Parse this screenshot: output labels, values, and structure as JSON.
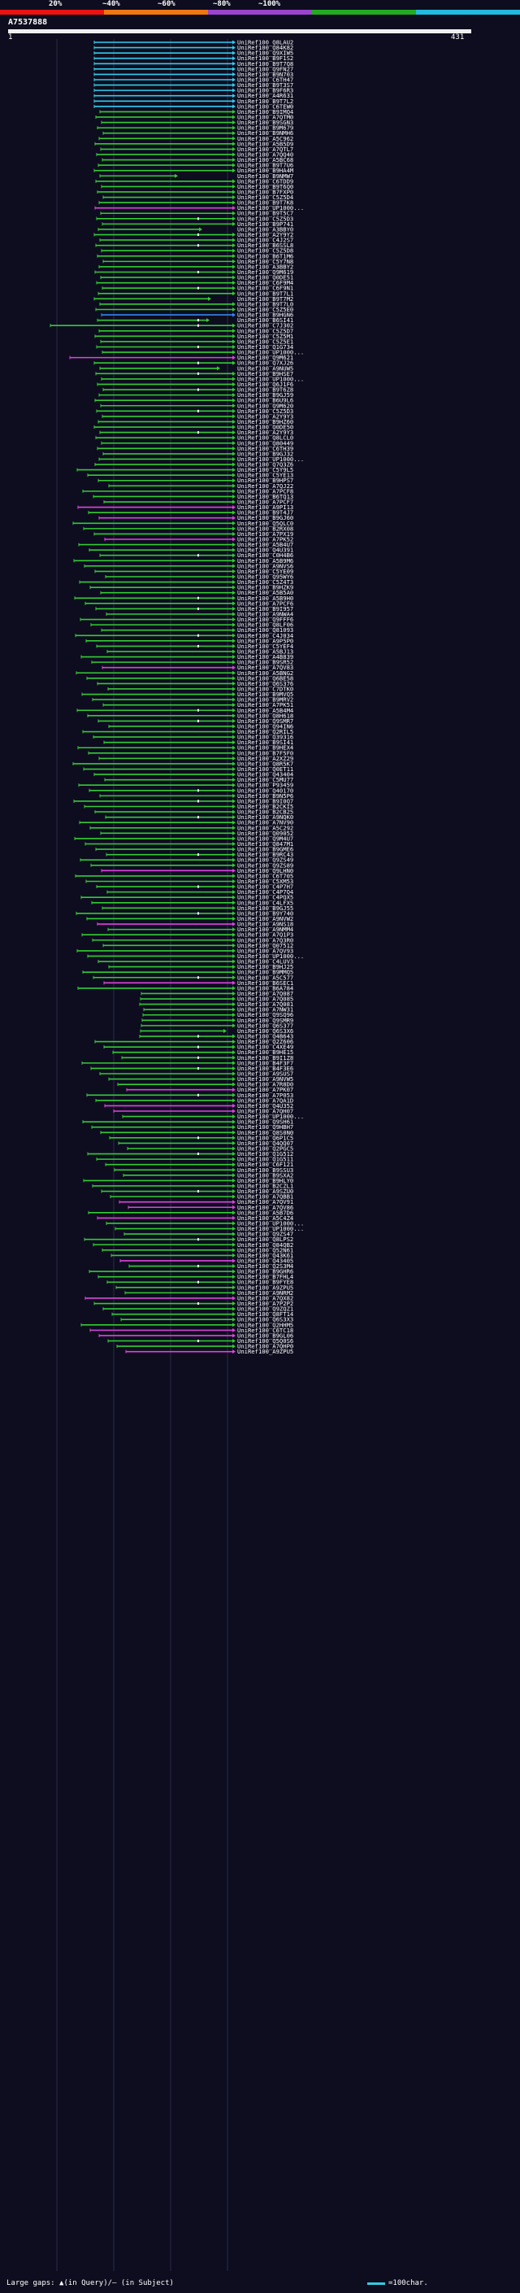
{
  "query": {
    "id": "A7537888",
    "start": "1",
    "end": "431"
  },
  "identity_scale": [
    {
      "label": "20%",
      "color": "#ee1111"
    },
    {
      "label": "~40%",
      "color": "#ee7711"
    },
    {
      "label": "~60%",
      "color": "#9944cc"
    },
    {
      "label": "~80%",
      "color": "#22aa22"
    },
    {
      "label": "~100%",
      "color": "#22bbdd"
    }
  ],
  "colors": {
    "background": "#0d0d1f",
    "hit_green": "#33cc33",
    "hit_cyan": "#33ccee",
    "hit_magenta": "#dd44dd",
    "hit_blue": "#3388ee",
    "gap_marker": "#ffffff"
  },
  "hits": [
    "UniRef100_Q8LAU2",
    "UniRef100_Q84K82",
    "UniRef100_Q9XIW5",
    "UniRef100_B9F1S2",
    "UniRef100_B9T7Q8",
    "UniRef100_Q9FN27",
    "UniRef100_B9N703",
    "UniRef100_C6TH47",
    "UniRef100_B9T3S7",
    "UniRef100_B9F6R3",
    "UniRef100_A4R631",
    "UniRef100_B9T7L2",
    "UniRef100_C6TEW0",
    "UniRef100_B9IMQ4",
    "UniRef100_A7QTM0",
    "UniRef100_B9SGN3",
    "UniRef100_B9M679",
    "UniRef100_B9NMH6",
    "UniRef100_A5C962",
    "UniRef100_A5B5D9",
    "UniRef100_A7QTL7",
    "UniRef100_A7QQ40",
    "UniRef100_A5BC68",
    "UniRef100_B9T7U6",
    "UniRef100_B9HA4M",
    "UniRef100_B9NMW7",
    "UniRef100_C6TDD9",
    "UniRef100_B9T6Q0",
    "UniRef100_B7FXP0",
    "UniRef100_C5Z5D4",
    "UniRef100_B9T7K8",
    "UniRef100_UP1000...",
    "UniRef100_B9T5C7",
    "UniRef100_C5Z5D3",
    "UniRef100_B9P741",
    "UniRef100_A3BBY0",
    "UniRef100_A2Y9Y2",
    "UniRef100_C4J2S7",
    "UniRef100_B6SSL8",
    "UniRef100_C5Z5D8",
    "UniRef100_B6T1M6",
    "UniRef100_C5Y7N8",
    "UniRef100_A3BBY2",
    "UniRef100_Q9M619",
    "UniRef100_Q0DE51",
    "UniRef100_C6F9M4",
    "UniRef100_C6F9N1",
    "UniRef100_B9T7L1",
    "UniRef100_B9T7M2",
    "UniRef100_B9T7L0",
    "UniRef100_C5Z5E0",
    "UniRef100_B9HGN6",
    "UniRef100_B6SI41",
    "UniRef100_C7J302",
    "UniRef100_C5Z5D7",
    "UniRef100_C5Z5M1",
    "UniRef100_C5Z5E1",
    "UniRef100_Q1G734",
    "UniRef100_UP1000...",
    "UniRef100_Q9M621",
    "UniRef100_Q7XJ26",
    "UniRef100_A9NUW5",
    "UniRef100_B9HSE7",
    "UniRef100_UP1000...",
    "UniRef100_Q6J1F6",
    "UniRef100_B9T6Z8",
    "UniRef100_B9GJ59",
    "UniRef100_B6U9L6",
    "UniRef100_Q9M620",
    "UniRef100_C5Z5D3",
    "UniRef100_A2Y9Y3",
    "UniRef100_B9HZ60",
    "UniRef100_Q0DE50",
    "UniRef100_A2Y9Y3",
    "UniRef100_Q8LCL0",
    "UniRef100_Q80449",
    "UniRef100_C6TH39",
    "UniRef100_B9GJ32",
    "UniRef100_UP1000...",
    "UniRef100_Q7Q3Z6",
    "UniRef100_C5Y9L5",
    "UniRef100_C5YE13",
    "UniRef100_B9HPS7",
    "UniRef100_A7QJ22",
    "UniRef100_A7PCF8",
    "UniRef100_B6TQ13",
    "UniRef100_A7PCF7",
    "UniRef100_A9PI13",
    "UniRef100_B9T4J7",
    "UniRef100_B9GJ60",
    "UniRef100_Q5QLC0",
    "UniRef100_B2RX08",
    "UniRef100_A7PX19",
    "UniRef100_A7PK52",
    "UniRef100_A5B4U7",
    "UniRef100_Q4U391",
    "UniRef100_C0H4B6",
    "UniRef100_A5B9M6",
    "UniRef100_A9NVS6",
    "UniRef100_C5YE09",
    "UniRef100_Q95WY6",
    "UniRef100_C5Z4T3",
    "UniRef100_B9HZK9",
    "UniRef100_A5B5A0",
    "UniRef100_A5B9H0",
    "UniRef100_A7PCF6",
    "UniRef100_B9I957",
    "UniRef100_A9NWA4",
    "UniRef100_Q9FFF6",
    "UniRef100_Q8LF06",
    "UniRef100_Q81093",
    "UniRef100_C4J034",
    "UniRef100_A9P5P0",
    "UniRef100_C5YEF4",
    "UniRef100_A5BJ13",
    "UniRef100_A4B839",
    "UniRef100_B9SR52",
    "UniRef100_A7QV83",
    "UniRef100_A5BNG2",
    "UniRef100_Q6BE58",
    "UniRef100_Q6S376",
    "UniRef100_C7DTK0",
    "UniRef100_B9MVQ5",
    "UniRef100_B9MRV2",
    "UniRef100_A7PK51",
    "UniRef100_A5B4M4",
    "UniRef100_Q8H618",
    "UniRef100_Q9SMR7",
    "UniRef100_Q94IN6",
    "UniRef100_Q2RIL5",
    "UniRef100_Q39316",
    "UniRef100_B9SI41",
    "UniRef100_B9HEX4",
    "UniRef100_B7F5F0",
    "UniRef100_A2XZ29",
    "UniRef100_Q8R5K7",
    "UniRef100_Q0ET11",
    "UniRef100_Q43404",
    "UniRef100_C5MU77",
    "UniRef100_P93459",
    "UniRef100_Q40170",
    "UniRef100_B9N5P6",
    "UniRef100_B9I0Q7",
    "UniRef100_B2CKI5",
    "UniRef100_B2CB25",
    "UniRef100_A9NQK0",
    "UniRef100_A7NV90",
    "UniRef100_A5C292",
    "UniRef100_Q09052",
    "UniRef100_Q9M4U7",
    "UniRef100_Q847M1",
    "UniRef100_B9GME6",
    "UniRef100_B9RC43",
    "UniRef100_Q9ZS49",
    "UniRef100_Q9ZS89",
    "UniRef100_Q9LHN0",
    "UniRef100_C6T705",
    "UniRef100_C5XM53",
    "UniRef100_C4P7H7",
    "UniRef100_C4P7Q4",
    "UniRef100_C4PQX5",
    "UniRef100_C4LFX5",
    "UniRef100_B9GJ55",
    "UniRef100_B9Y740",
    "UniRef100_A9NVW2",
    "UniRef100_A9NS18",
    "UniRef100_A9NMM4",
    "UniRef100_A7Q1P3",
    "UniRef100_A7Q3R0",
    "UniRef100_Q07512",
    "UniRef100_A7QV93",
    "UniRef100_UP1000...",
    "UniRef100_C4LUV3",
    "UniRef100_B9HJ25",
    "UniRef100_B9MMQ5",
    "UniRef100_A5C577",
    "UniRef100_B6SEC1",
    "UniRef100_B6A784",
    "UniRef100_A7Q087",
    "UniRef100_A7Q085",
    "UniRef100_A7Q081",
    "UniRef100_A7NW31",
    "UniRef100_Q9SQ96",
    "UniRef100_Q9SMR9",
    "UniRef100_Q6S377",
    "UniRef100_Q6S3X6",
    "UniRef100_Q4B643",
    "UniRef100_Q2Z606",
    "UniRef100_C4XE49",
    "UniRef100_B9HE15",
    "UniRef100_B9I1Z8",
    "UniRef100_B4F3F7",
    "UniRef100_B4F3E6",
    "UniRef100_A9SUS7",
    "UniRef100_A9NVW5",
    "UniRef100_A7R8D0",
    "UniRef100_A7PK07",
    "UniRef100_A7P053",
    "UniRef100_A7QA1D",
    "UniRef100_Q4U352",
    "UniRef100_A7QH07",
    "UniRef100_UP1000...",
    "UniRef100_Q9SH61",
    "UniRef100_Q9HBH7",
    "UniRef100_Q8S0N0",
    "UniRef100_Q6P1C5",
    "UniRef100_Q4QQ07",
    "UniRef100_Q2PGC5",
    "UniRef100_Q1G512",
    "UniRef100_Q1G511",
    "UniRef100_C6F121",
    "UniRef100_B9SSU3",
    "UniRef100_B9SXA2",
    "UniRef100_B9HLY0",
    "UniRef100_B2CZL1",
    "UniRef100_A9SZU0",
    "UniRef100_A7QBB1",
    "UniRef100_A7QV91",
    "UniRef100_A7QV86",
    "UniRef100_A5B7D6",
    "UniRef100_A5C4Z4",
    "UniRef100_UP1000...",
    "UniRef100_UP1000...",
    "UniRef100_Q9ZS47",
    "UniRef100_Q8LPS2",
    "UniRef100_Q84QB2",
    "UniRef100_Q52N61",
    "UniRef100_Q43K61",
    "UniRef100_Q43405",
    "UniRef100_Q2S3M4",
    "UniRef100_B9GHR6",
    "UniRef100_B7FHL4",
    "UniRef100_B9FYE8",
    "UniRef100_A9ZPU5",
    "UniRef100_A9NRM2",
    "UniRef100_A7QX82",
    "UniRef100_A7P2P2",
    "UniRef100_Q9ZQZ1",
    "UniRef100_Q8FT14",
    "UniRef100_Q6S3X3",
    "UniRef100_Q2HHM5",
    "UniRef100_C6TC18",
    "UniRef100_B9GL06",
    "UniRef100_Q5Q0S6",
    "UniRef100_A7QHP0",
    "UniRef100_A9ZPU5"
  ],
  "footer": {
    "gap_legend": "Large gaps: ▲(in Query)/— (in Subject)",
    "scale_legend": "=100char."
  }
}
